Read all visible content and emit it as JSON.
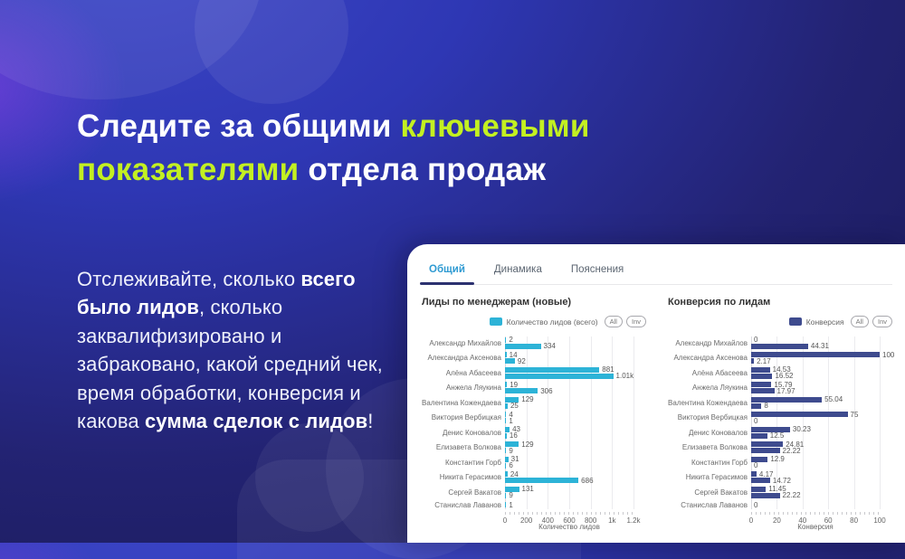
{
  "hero": {
    "accent_color": "#c3f021",
    "title_segments": [
      "Следите за общими ",
      "ключевыми показателями",
      " отдела продаж"
    ],
    "body_segments": [
      "Отслеживайте, сколько ",
      "всего было лидов",
      ", сколько заквалифизировано и забраковано, какой средний чек, время обработки, конверсия и какова ",
      "сумма сделок с лидов",
      "!"
    ]
  },
  "dashboard": {
    "tabs": [
      {
        "label": "Общий",
        "active": true
      },
      {
        "label": "Динамика",
        "active": false
      },
      {
        "label": "Пояснения",
        "active": false
      }
    ]
  },
  "chart_data": [
    {
      "type": "bar",
      "orientation": "horizontal",
      "title": "Лиды по менеджерам (новые)",
      "legend": {
        "label": "Количество лидов (всего)",
        "buttons": [
          "All",
          "Inv"
        ],
        "color": "#2db3d7",
        "position": "top-right"
      },
      "xlabel": "Количество лидов",
      "xlim": [
        0,
        1200
      ],
      "grid": true,
      "ticks": [
        {
          "v": 0,
          "label": "0"
        },
        {
          "v": 200,
          "label": "200"
        },
        {
          "v": 400,
          "label": "400"
        },
        {
          "v": 600,
          "label": "600"
        },
        {
          "v": 800,
          "label": "800"
        },
        {
          "v": 1000,
          "label": "1k"
        },
        {
          "v": 1200,
          "label": "1.2k"
        }
      ],
      "categories": [
        {
          "name": "Александр Михайлов",
          "bars": [
            {
              "v": 2,
              "label": "2"
            },
            {
              "v": 334,
              "label": "334"
            }
          ]
        },
        {
          "name": "Александра Аксенова",
          "bars": [
            {
              "v": 14,
              "label": "14"
            },
            {
              "v": 92,
              "label": "92"
            }
          ]
        },
        {
          "name": "Алёна Абасеева",
          "bars": [
            {
              "v": 881,
              "label": "881"
            },
            {
              "v": 1010,
              "label": "1.01k"
            }
          ]
        },
        {
          "name": "Анжела Ляукина",
          "bars": [
            {
              "v": 19,
              "label": "19"
            },
            {
              "v": 306,
              "label": "306"
            }
          ]
        },
        {
          "name": "Валентина Кожендаева",
          "bars": [
            {
              "v": 129,
              "label": "129"
            },
            {
              "v": 25,
              "label": "25"
            }
          ]
        },
        {
          "name": "Виктория Вербицкая",
          "bars": [
            {
              "v": 4,
              "label": "4"
            },
            {
              "v": 1,
              "label": "1"
            }
          ]
        },
        {
          "name": "Денис Коновалов",
          "bars": [
            {
              "v": 43,
              "label": "43"
            },
            {
              "v": 16,
              "label": "16"
            }
          ]
        },
        {
          "name": "Елизавета Волкова",
          "bars": [
            {
              "v": 129,
              "label": "129"
            },
            {
              "v": 9,
              "label": "9"
            }
          ]
        },
        {
          "name": "Константин Горб",
          "bars": [
            {
              "v": 31,
              "label": "31"
            },
            {
              "v": 6,
              "label": "6"
            }
          ]
        },
        {
          "name": "Никита Герасимов",
          "bars": [
            {
              "v": 24,
              "label": "24"
            },
            {
              "v": 686,
              "label": "686"
            }
          ]
        },
        {
          "name": "Сергей Вакатов",
          "bars": [
            {
              "v": 131,
              "label": "131"
            },
            {
              "v": 9,
              "label": "9"
            }
          ]
        },
        {
          "name": "Станислав Лаванов",
          "bars": [
            {
              "v": 1,
              "label": "1"
            }
          ]
        }
      ]
    },
    {
      "type": "bar",
      "orientation": "horizontal",
      "title": "Конверсия по лидам",
      "legend": {
        "label": "Конверсия",
        "buttons": [
          "All",
          "Inv"
        ],
        "color": "#3e4b8e",
        "position": "top-right"
      },
      "xlabel": "Конверсия",
      "xlim": [
        0,
        100
      ],
      "grid": true,
      "ticks": [
        {
          "v": 0,
          "label": "0"
        },
        {
          "v": 20,
          "label": "20"
        },
        {
          "v": 40,
          "label": "40"
        },
        {
          "v": 60,
          "label": "60"
        },
        {
          "v": 80,
          "label": "80"
        },
        {
          "v": 100,
          "label": "100"
        }
      ],
      "categories": [
        {
          "name": "Александр Михайлов",
          "bars": [
            {
              "v": 0,
              "label": "0"
            },
            {
              "v": 44.31,
              "label": "44.31"
            }
          ]
        },
        {
          "name": "Александра Аксенова",
          "bars": [
            {
              "v": 100,
              "label": "100"
            },
            {
              "v": 2.17,
              "label": "2.17"
            }
          ]
        },
        {
          "name": "Алёна Абасеева",
          "bars": [
            {
              "v": 14.53,
              "label": "14.53"
            },
            {
              "v": 16.52,
              "label": "16.52"
            }
          ]
        },
        {
          "name": "Анжела Ляукина",
          "bars": [
            {
              "v": 15.79,
              "label": "15.79"
            },
            {
              "v": 17.97,
              "label": "17.97"
            }
          ]
        },
        {
          "name": "Валентина Кожендаева",
          "bars": [
            {
              "v": 55.04,
              "label": "55.04"
            },
            {
              "v": 8,
              "label": "8"
            }
          ]
        },
        {
          "name": "Виктория Вербицкая",
          "bars": [
            {
              "v": 75,
              "label": "75"
            },
            {
              "v": 0,
              "label": "0"
            }
          ]
        },
        {
          "name": "Денис Коновалов",
          "bars": [
            {
              "v": 30.23,
              "label": "30.23"
            },
            {
              "v": 12.5,
              "label": "12.5"
            }
          ]
        },
        {
          "name": "Елизавета Волкова",
          "bars": [
            {
              "v": 24.81,
              "label": "24.81"
            },
            {
              "v": 22.22,
              "label": "22.22"
            }
          ]
        },
        {
          "name": "Константин Горб",
          "bars": [
            {
              "v": 12.9,
              "label": "12.9"
            },
            {
              "v": 0,
              "label": "0"
            }
          ]
        },
        {
          "name": "Никита Герасимов",
          "bars": [
            {
              "v": 4.17,
              "label": "4.17"
            },
            {
              "v": 14.72,
              "label": "14.72"
            }
          ]
        },
        {
          "name": "Сергей Вакатов",
          "bars": [
            {
              "v": 11.45,
              "label": "11.45"
            },
            {
              "v": 22.22,
              "label": "22.22"
            }
          ]
        },
        {
          "name": "Станислав Лаванов",
          "bars": [
            {
              "v": 0,
              "label": "0"
            }
          ]
        }
      ]
    }
  ]
}
